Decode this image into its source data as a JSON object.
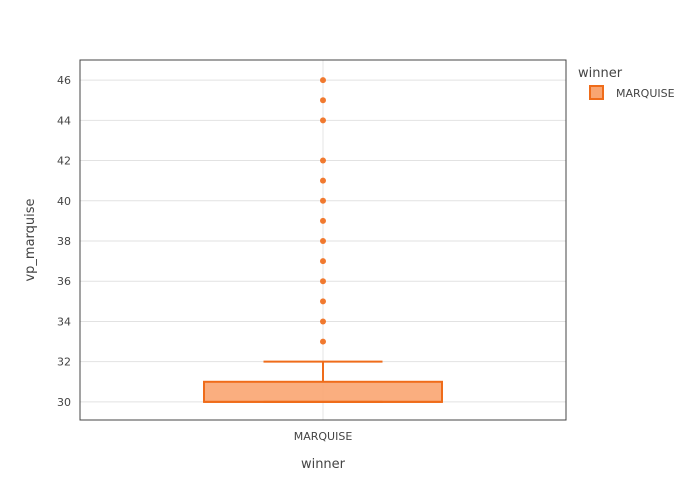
{
  "chart_data": {
    "type": "box",
    "xlabel": "winner",
    "ylabel": "vp_marquise",
    "categories": [
      "MARQUISE"
    ],
    "ylim": [
      29.1,
      47
    ],
    "yticks": [
      30,
      32,
      34,
      36,
      38,
      40,
      42,
      44,
      46
    ],
    "grid": true,
    "legend": {
      "title": "winner",
      "position": "top-right",
      "entries": [
        "MARQUISE"
      ]
    },
    "series": [
      {
        "name": "MARQUISE",
        "color": "#ef6c1a",
        "fill": "#f9a571",
        "box": {
          "q1": 30,
          "median": 30,
          "q3": 31,
          "lower_whisker": 30,
          "upper_whisker": 32
        },
        "outliers": [
          33,
          34,
          35,
          36,
          37,
          38,
          39,
          40,
          41,
          42,
          44,
          45,
          46
        ]
      }
    ]
  }
}
